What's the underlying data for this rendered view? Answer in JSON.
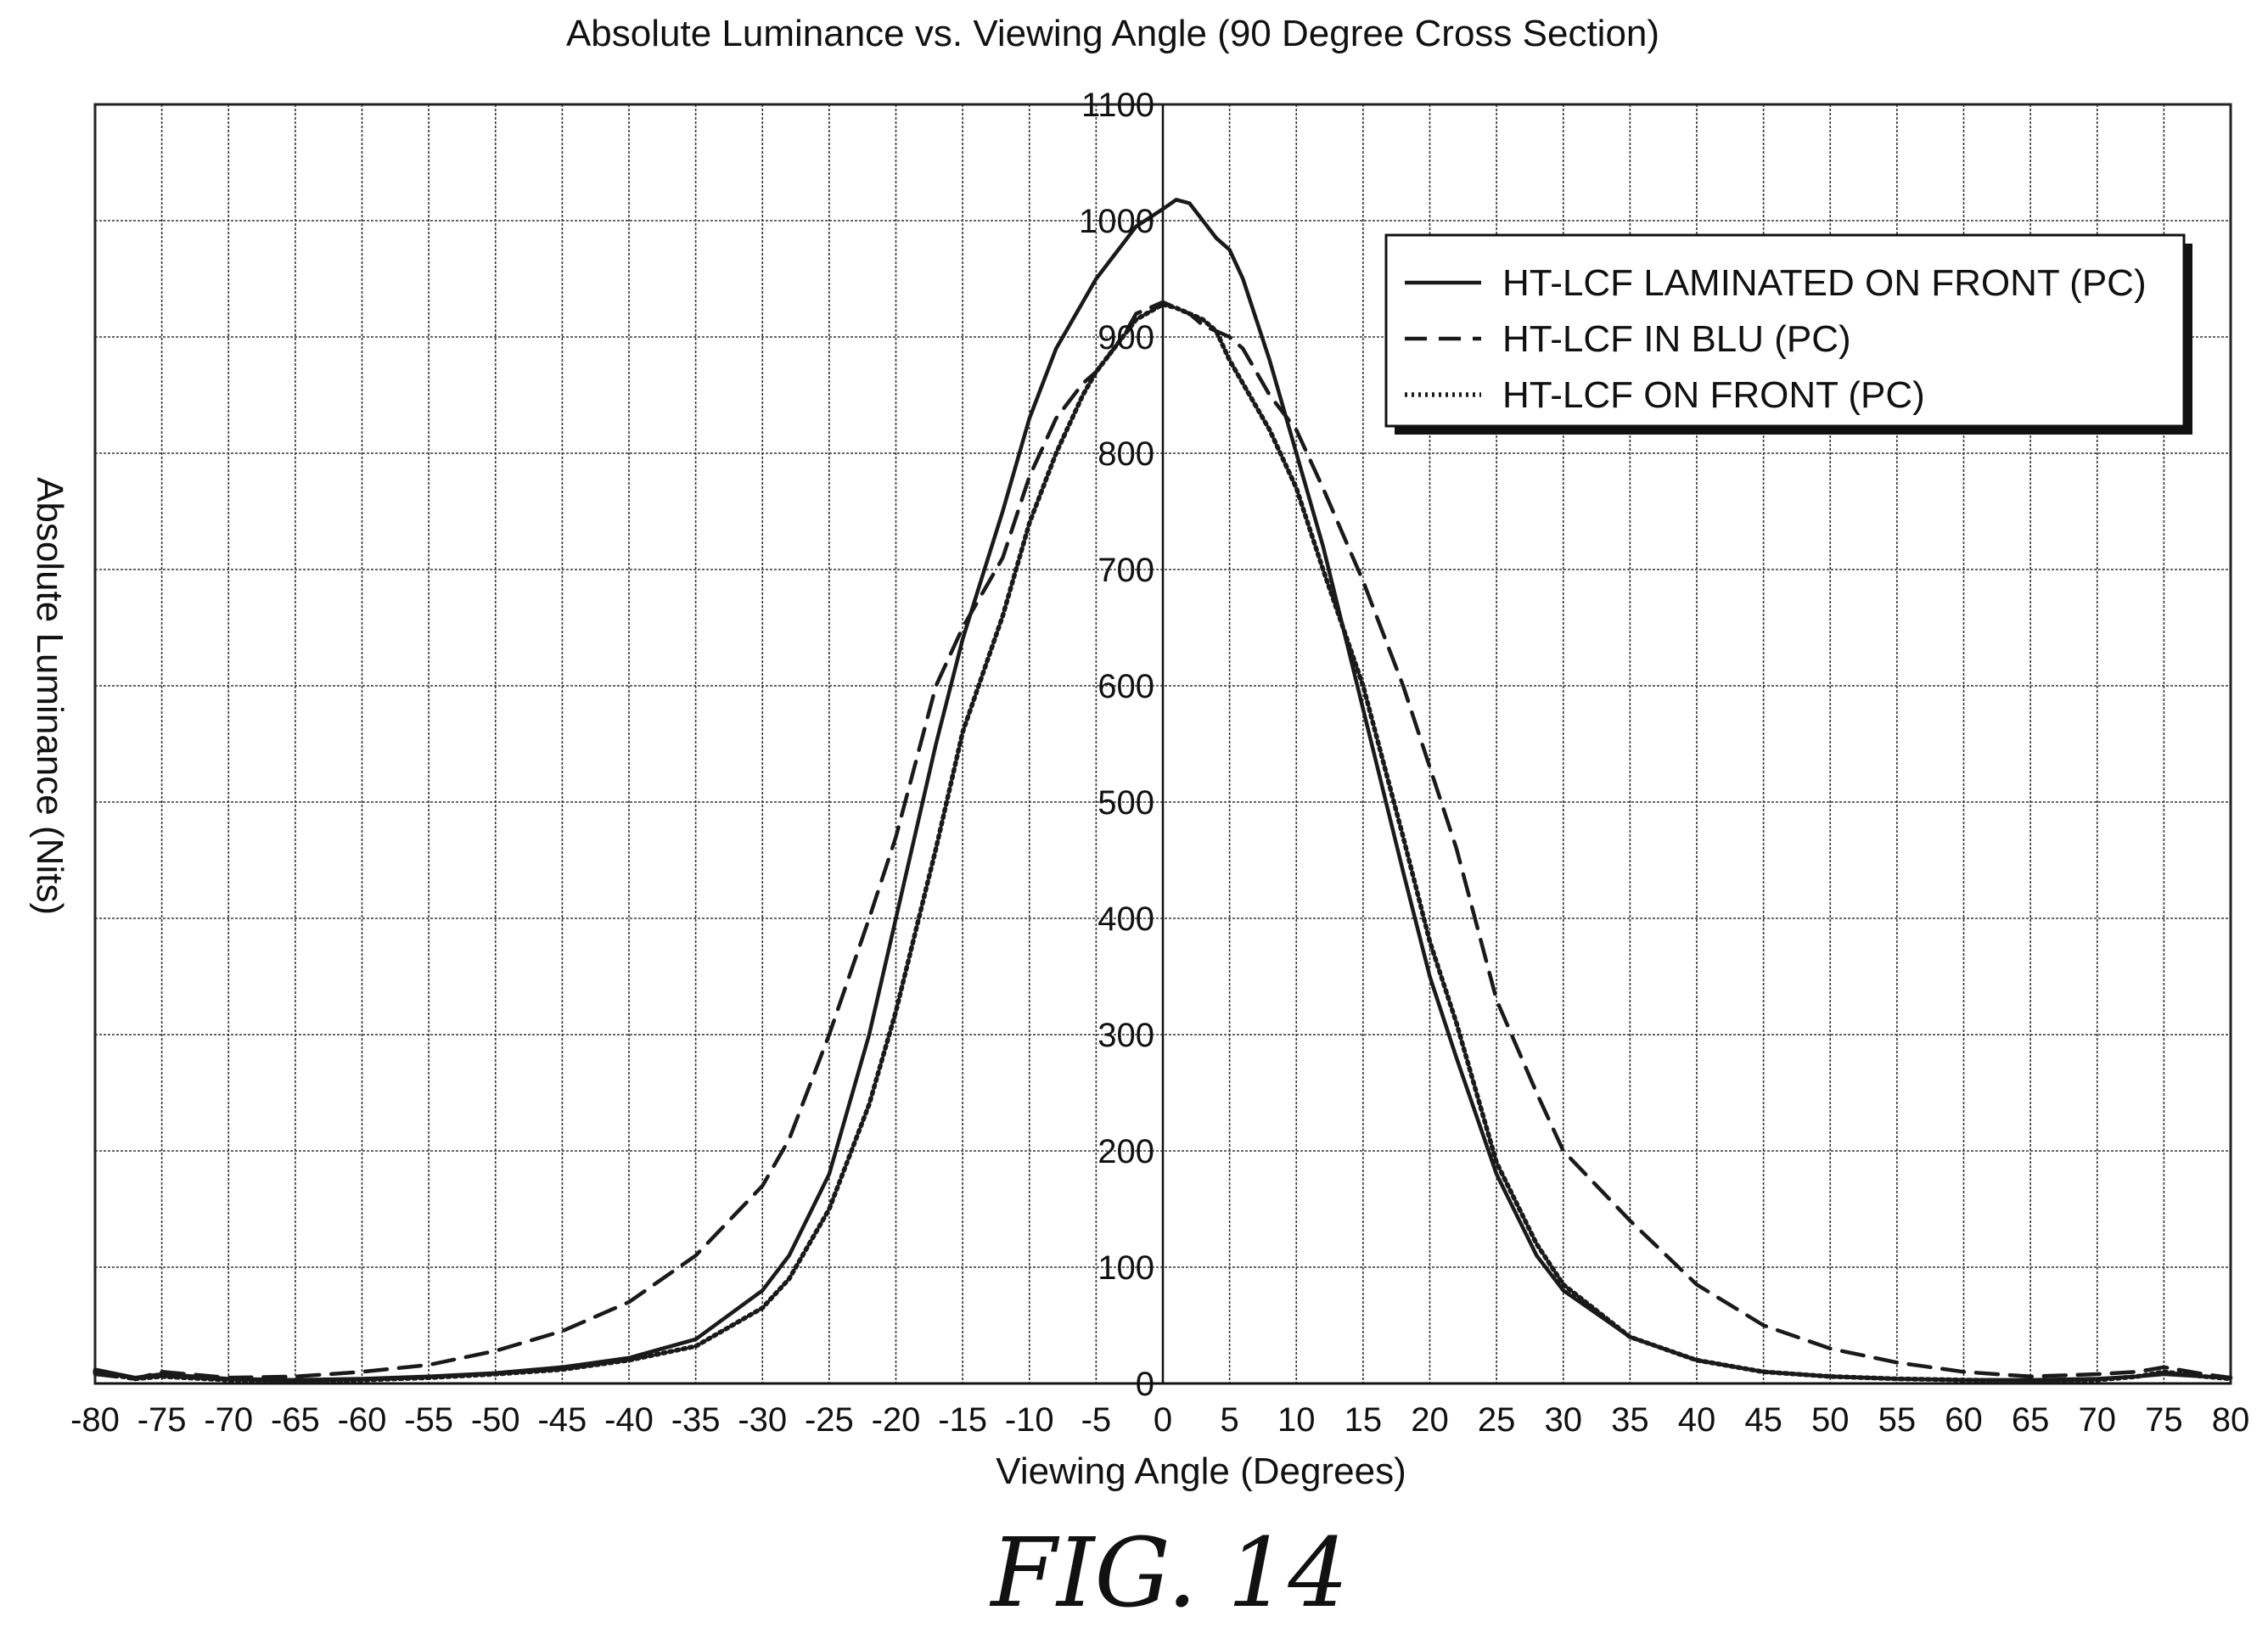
{
  "figure_caption": "FIG. 14",
  "chart_data": {
    "type": "line",
    "title": "Absolute Luminance vs. Viewing Angle (90 Degree Cross Section)",
    "xlabel": "Viewing Angle (Degrees)",
    "ylabel": "Absolute Luminance (Nits)",
    "xlim": [
      -80,
      80
    ],
    "ylim": [
      0,
      1100
    ],
    "x_ticks": [
      -80,
      -75,
      -70,
      -65,
      -60,
      -55,
      -50,
      -45,
      -40,
      -35,
      -30,
      -25,
      -20,
      -15,
      -10,
      -5,
      0,
      5,
      10,
      15,
      20,
      25,
      30,
      35,
      40,
      45,
      50,
      55,
      60,
      65,
      70,
      75,
      80
    ],
    "y_ticks": [
      0,
      100,
      200,
      300,
      400,
      500,
      600,
      700,
      800,
      900,
      1000,
      1100
    ],
    "grid": true,
    "legend_position": "top-right",
    "series_color": "#1a1a1a",
    "x": [
      -80,
      -77,
      -75,
      -70,
      -65,
      -60,
      -55,
      -50,
      -45,
      -40,
      -35,
      -30,
      -28,
      -25,
      -22,
      -20,
      -17,
      -15,
      -12,
      -10,
      -8,
      -6,
      -5,
      -3,
      -2,
      0,
      1,
      2,
      3,
      4,
      5,
      6,
      8,
      10,
      12,
      15,
      18,
      20,
      22,
      25,
      28,
      30,
      35,
      40,
      45,
      50,
      55,
      60,
      65,
      70,
      73,
      75,
      78,
      80
    ],
    "series": [
      {
        "name": "HT-LCF LAMINATED ON FRONT (PC)",
        "style": "solid",
        "values": [
          12,
          5,
          8,
          4,
          3,
          4,
          6,
          9,
          14,
          22,
          38,
          80,
          110,
          180,
          300,
          400,
          550,
          640,
          750,
          830,
          890,
          930,
          950,
          980,
          995,
          1010,
          1018,
          1015,
          1000,
          985,
          975,
          950,
          880,
          800,
          720,
          580,
          440,
          350,
          280,
          180,
          110,
          80,
          40,
          20,
          10,
          6,
          4,
          3,
          3,
          4,
          6,
          8,
          6,
          5
        ]
      },
      {
        "name": "HT-LCF IN BLU (PC)",
        "style": "dashed",
        "values": [
          8,
          4,
          10,
          5,
          6,
          10,
          16,
          28,
          45,
          70,
          110,
          170,
          210,
          300,
          400,
          470,
          600,
          650,
          710,
          780,
          830,
          860,
          870,
          900,
          920,
          930,
          925,
          920,
          910,
          905,
          900,
          890,
          850,
          820,
          770,
          690,
          600,
          530,
          460,
          330,
          250,
          200,
          140,
          85,
          50,
          30,
          18,
          10,
          6,
          8,
          10,
          14,
          8,
          5
        ]
      },
      {
        "name": "HT-LCF ON FRONT (PC)",
        "style": "dotted",
        "values": [
          10,
          4,
          6,
          3,
          2,
          3,
          5,
          8,
          12,
          20,
          32,
          65,
          90,
          150,
          240,
          320,
          460,
          560,
          660,
          740,
          800,
          850,
          870,
          900,
          915,
          928,
          925,
          920,
          915,
          905,
          880,
          860,
          820,
          770,
          700,
          600,
          470,
          380,
          310,
          190,
          120,
          85,
          40,
          20,
          10,
          6,
          4,
          3,
          2,
          3,
          6,
          10,
          6,
          4
        ]
      }
    ]
  }
}
